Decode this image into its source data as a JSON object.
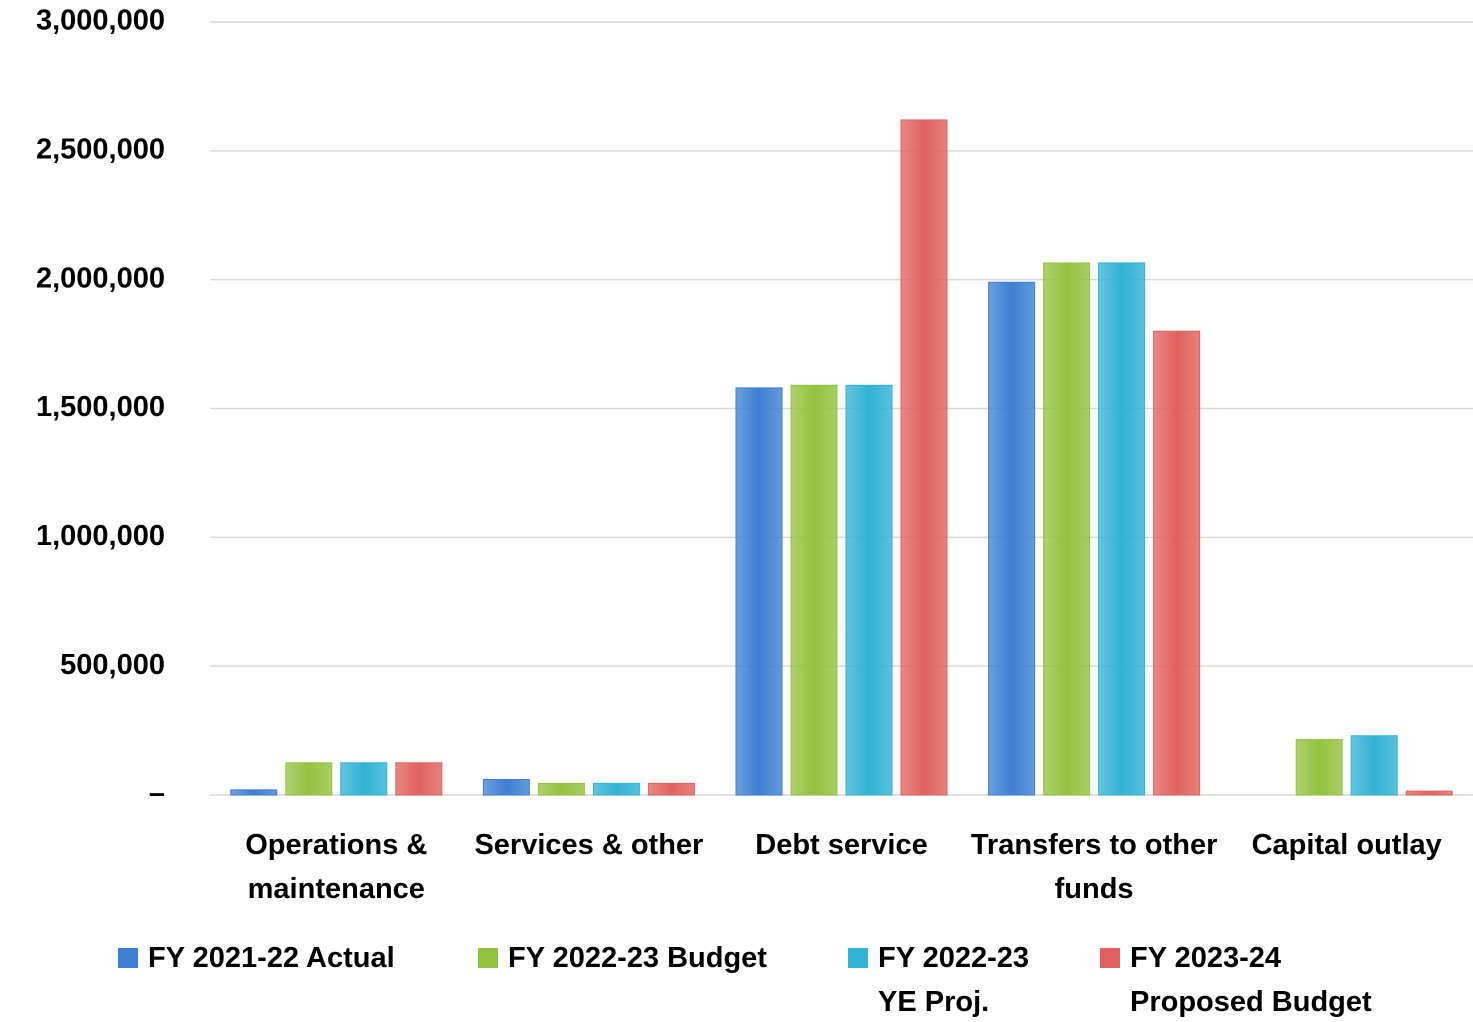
{
  "chart_data": {
    "type": "bar",
    "categories": [
      "Operations & maintenance",
      "Services & other",
      "Debt service",
      "Transfers to other funds",
      "Capital outlay"
    ],
    "series": [
      {
        "name": "FY 2021-22 Actual",
        "color": "#3d7fd3",
        "values": [
          20000,
          60000,
          1580000,
          1990000,
          0
        ]
      },
      {
        "name": "FY 2022-23 Budget",
        "color": "#93c23e",
        "values": [
          125000,
          45000,
          1590000,
          2065000,
          215000
        ]
      },
      {
        "name": "FY 2022-23 YE Proj.",
        "color": "#30b2d4",
        "values": [
          125000,
          45000,
          1590000,
          2065000,
          230000
        ]
      },
      {
        "name": "FY 2023-24 Proposed Budget",
        "color": "#e0625f",
        "values": [
          125000,
          45000,
          2620000,
          1800000,
          15000
        ]
      }
    ],
    "ylim": [
      0,
      3000000
    ],
    "yticks": [
      {
        "value": 0,
        "label": "–"
      },
      {
        "value": 500000,
        "label": "500,000"
      },
      {
        "value": 1000000,
        "label": "1,000,000"
      },
      {
        "value": 1500000,
        "label": "1,500,000"
      },
      {
        "value": 2000000,
        "label": "2,000,000"
      },
      {
        "value": 2500000,
        "label": "2,500,000"
      },
      {
        "value": 3000000,
        "label": "3,000,000"
      }
    ],
    "grid": true,
    "legend": "bottom"
  }
}
